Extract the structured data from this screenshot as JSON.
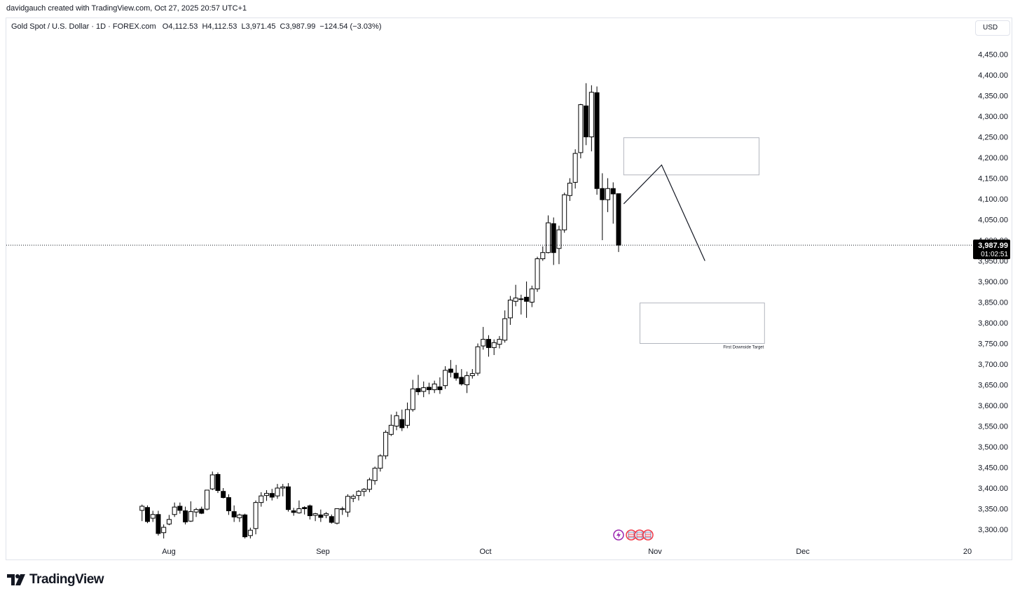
{
  "header": {
    "created_by": "davidgauch created with TradingView.com, Oct 27, 2025 20:57 UTC+1",
    "legend": "Gold Spot / U.S. Dollar · 1D · FOREX.com   O4,112.53  H4,112.53  L3,971.45  C3,987.99  −124.54 (−3.03%)",
    "currency": "USD"
  },
  "price_label": {
    "price": "3,987.99",
    "countdown": "01:02:51"
  },
  "brand": {
    "name": "TradingView",
    "icon": "tradingview-logo-icon"
  },
  "event_icons": [
    "lightning-icon",
    "us-flag-icon",
    "us-flag-icon",
    "us-flag-icon"
  ],
  "colors": {
    "up_body": "#ffffff",
    "down_body": "#000000",
    "wick": "#000000",
    "zone_border": "#b2b5be",
    "axis_text": "#131722"
  },
  "chart_data": {
    "type": "candlestick",
    "title": "Gold Spot / U.S. Dollar",
    "interval": "1D",
    "ylim": [
      3270,
      4490
    ],
    "yticks": [
      "3,300.00",
      "3,350.00",
      "3,400.00",
      "3,450.00",
      "3,500.00",
      "3,550.00",
      "3,600.00",
      "3,650.00",
      "3,700.00",
      "3,750.00",
      "3,800.00",
      "3,850.00",
      "3,900.00",
      "3,950.00",
      "4,000.00",
      "4,050.00",
      "4,100.00",
      "4,150.00",
      "4,200.00",
      "4,250.00",
      "4,300.00",
      "4,350.00",
      "4,400.00",
      "4,450.00"
    ],
    "xticks": [
      "Aug",
      "Sep",
      "Oct",
      "Nov",
      "Dec",
      "20"
    ],
    "last_close": 3987.99,
    "candles": [
      {
        "o": 3346,
        "h": 3360,
        "l": 3320,
        "c": 3356
      },
      {
        "o": 3353,
        "h": 3358,
        "l": 3315,
        "c": 3319
      },
      {
        "o": 3327,
        "h": 3345,
        "l": 3318,
        "c": 3336
      },
      {
        "o": 3336,
        "h": 3345,
        "l": 3285,
        "c": 3290
      },
      {
        "o": 3292,
        "h": 3312,
        "l": 3278,
        "c": 3305
      },
      {
        "o": 3313,
        "h": 3335,
        "l": 3310,
        "c": 3324
      },
      {
        "o": 3336,
        "h": 3365,
        "l": 3330,
        "c": 3354
      },
      {
        "o": 3356,
        "h": 3365,
        "l": 3338,
        "c": 3346
      },
      {
        "o": 3345,
        "h": 3355,
        "l": 3312,
        "c": 3318
      },
      {
        "o": 3320,
        "h": 3368,
        "l": 3318,
        "c": 3343
      },
      {
        "o": 3342,
        "h": 3352,
        "l": 3330,
        "c": 3348
      },
      {
        "o": 3349,
        "h": 3355,
        "l": 3337,
        "c": 3339
      },
      {
        "o": 3349,
        "h": 3395,
        "l": 3346,
        "c": 3395
      },
      {
        "o": 3398,
        "h": 3440,
        "l": 3395,
        "c": 3432
      },
      {
        "o": 3433,
        "h": 3438,
        "l": 3388,
        "c": 3394
      },
      {
        "o": 3392,
        "h": 3400,
        "l": 3375,
        "c": 3377
      },
      {
        "o": 3377,
        "h": 3385,
        "l": 3335,
        "c": 3345
      },
      {
        "o": 3343,
        "h": 3358,
        "l": 3318,
        "c": 3330
      },
      {
        "o": 3328,
        "h": 3338,
        "l": 3318,
        "c": 3335
      },
      {
        "o": 3335,
        "h": 3338,
        "l": 3278,
        "c": 3282
      },
      {
        "o": 3285,
        "h": 3304,
        "l": 3278,
        "c": 3298
      },
      {
        "o": 3302,
        "h": 3370,
        "l": 3288,
        "c": 3365
      },
      {
        "o": 3365,
        "h": 3390,
        "l": 3355,
        "c": 3381
      },
      {
        "o": 3382,
        "h": 3395,
        "l": 3369,
        "c": 3387
      },
      {
        "o": 3387,
        "h": 3398,
        "l": 3370,
        "c": 3378
      },
      {
        "o": 3381,
        "h": 3410,
        "l": 3374,
        "c": 3400
      },
      {
        "o": 3400,
        "h": 3410,
        "l": 3380,
        "c": 3403
      },
      {
        "o": 3403,
        "h": 3412,
        "l": 3343,
        "c": 3348
      },
      {
        "o": 3345,
        "h": 3352,
        "l": 3333,
        "c": 3341
      },
      {
        "o": 3340,
        "h": 3370,
        "l": 3338,
        "c": 3350
      },
      {
        "o": 3353,
        "h": 3356,
        "l": 3336,
        "c": 3350
      },
      {
        "o": 3357,
        "h": 3360,
        "l": 3324,
        "c": 3333
      },
      {
        "o": 3334,
        "h": 3340,
        "l": 3320,
        "c": 3338
      },
      {
        "o": 3335,
        "h": 3348,
        "l": 3318,
        "c": 3329
      },
      {
        "o": 3334,
        "h": 3342,
        "l": 3327,
        "c": 3338
      },
      {
        "o": 3331,
        "h": 3336,
        "l": 3314,
        "c": 3317
      },
      {
        "o": 3315,
        "h": 3350,
        "l": 3312,
        "c": 3350
      },
      {
        "o": 3348,
        "h": 3355,
        "l": 3335,
        "c": 3350
      },
      {
        "o": 3342,
        "h": 3385,
        "l": 3330,
        "c": 3380
      },
      {
        "o": 3375,
        "h": 3385,
        "l": 3366,
        "c": 3380
      },
      {
        "o": 3382,
        "h": 3395,
        "l": 3370,
        "c": 3392
      },
      {
        "o": 3392,
        "h": 3400,
        "l": 3380,
        "c": 3397
      },
      {
        "o": 3397,
        "h": 3425,
        "l": 3390,
        "c": 3420
      },
      {
        "o": 3418,
        "h": 3452,
        "l": 3408,
        "c": 3448
      },
      {
        "o": 3448,
        "h": 3482,
        "l": 3440,
        "c": 3478
      },
      {
        "o": 3478,
        "h": 3540,
        "l": 3470,
        "c": 3535
      },
      {
        "o": 3530,
        "h": 3578,
        "l": 3526,
        "c": 3552
      },
      {
        "o": 3550,
        "h": 3585,
        "l": 3540,
        "c": 3575
      },
      {
        "o": 3566,
        "h": 3590,
        "l": 3538,
        "c": 3546
      },
      {
        "o": 3552,
        "h": 3607,
        "l": 3545,
        "c": 3590
      },
      {
        "o": 3590,
        "h": 3662,
        "l": 3585,
        "c": 3640
      },
      {
        "o": 3641,
        "h": 3674,
        "l": 3625,
        "c": 3633
      },
      {
        "o": 3634,
        "h": 3658,
        "l": 3620,
        "c": 3643
      },
      {
        "o": 3644,
        "h": 3655,
        "l": 3627,
        "c": 3638
      },
      {
        "o": 3638,
        "h": 3660,
        "l": 3630,
        "c": 3652
      },
      {
        "o": 3645,
        "h": 3668,
        "l": 3628,
        "c": 3638
      },
      {
        "o": 3648,
        "h": 3695,
        "l": 3640,
        "c": 3685
      },
      {
        "o": 3688,
        "h": 3710,
        "l": 3668,
        "c": 3680
      },
      {
        "o": 3678,
        "h": 3698,
        "l": 3660,
        "c": 3666
      },
      {
        "o": 3668,
        "h": 3688,
        "l": 3648,
        "c": 3652
      },
      {
        "o": 3650,
        "h": 3682,
        "l": 3630,
        "c": 3672
      },
      {
        "o": 3672,
        "h": 3688,
        "l": 3665,
        "c": 3677
      },
      {
        "o": 3678,
        "h": 3750,
        "l": 3672,
        "c": 3742
      },
      {
        "o": 3744,
        "h": 3790,
        "l": 3735,
        "c": 3760
      },
      {
        "o": 3760,
        "h": 3770,
        "l": 3718,
        "c": 3740
      },
      {
        "o": 3740,
        "h": 3760,
        "l": 3722,
        "c": 3752
      },
      {
        "o": 3748,
        "h": 3768,
        "l": 3738,
        "c": 3760
      },
      {
        "o": 3758,
        "h": 3830,
        "l": 3752,
        "c": 3810
      },
      {
        "o": 3812,
        "h": 3865,
        "l": 3795,
        "c": 3855
      },
      {
        "o": 3852,
        "h": 3892,
        "l": 3840,
        "c": 3860
      },
      {
        "o": 3858,
        "h": 3868,
        "l": 3820,
        "c": 3858
      },
      {
        "o": 3862,
        "h": 3900,
        "l": 3812,
        "c": 3852
      },
      {
        "o": 3850,
        "h": 3890,
        "l": 3838,
        "c": 3882
      },
      {
        "o": 3882,
        "h": 3960,
        "l": 3875,
        "c": 3955
      },
      {
        "o": 3955,
        "h": 3985,
        "l": 3950,
        "c": 3970
      },
      {
        "o": 3970,
        "h": 4060,
        "l": 3968,
        "c": 4042
      },
      {
        "o": 4040,
        "h": 4055,
        "l": 3940,
        "c": 3970
      },
      {
        "o": 3980,
        "h": 4035,
        "l": 3942,
        "c": 4025
      },
      {
        "o": 4025,
        "h": 4115,
        "l": 4018,
        "c": 4110
      },
      {
        "o": 4108,
        "h": 4150,
        "l": 4095,
        "c": 4138
      },
      {
        "o": 4140,
        "h": 4220,
        "l": 4125,
        "c": 4210
      },
      {
        "o": 4212,
        "h": 4330,
        "l": 4198,
        "c": 4328
      },
      {
        "o": 4325,
        "h": 4380,
        "l": 4230,
        "c": 4250
      },
      {
        "o": 4250,
        "h": 4375,
        "l": 4215,
        "c": 4358
      },
      {
        "o": 4357,
        "h": 4372,
        "l": 4110,
        "c": 4125
      },
      {
        "o": 4125,
        "h": 4162,
        "l": 4000,
        "c": 4098
      },
      {
        "o": 4098,
        "h": 4150,
        "l": 4068,
        "c": 4125
      },
      {
        "o": 4125,
        "h": 4140,
        "l": 4040,
        "c": 4112
      },
      {
        "o": 4112.53,
        "h": 4112.53,
        "l": 3971.45,
        "c": 3987.99
      }
    ],
    "annotations": [
      {
        "type": "zone",
        "label": "",
        "from_price": 4158,
        "to_price": 4248,
        "from_date": "Oct 24",
        "to_date": "Nov 18"
      },
      {
        "type": "zone",
        "label": "First Downside Target",
        "from_price": 3750,
        "to_price": 3848,
        "from_date": "Oct 27",
        "to_date": "Nov 19"
      },
      {
        "type": "path",
        "points": [
          [
            "Oct 24",
            4088
          ],
          [
            "Oct 31",
            4182
          ],
          [
            "Nov 8",
            3950
          ]
        ]
      }
    ]
  }
}
